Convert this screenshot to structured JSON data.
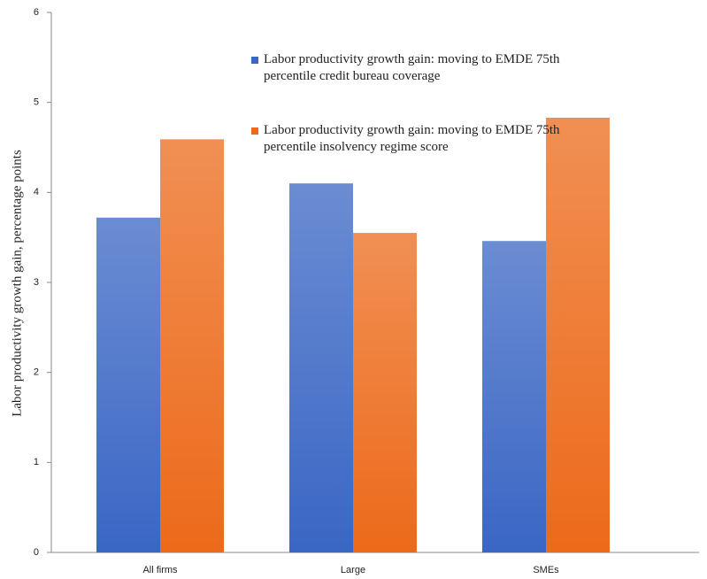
{
  "chart_data": {
    "type": "bar",
    "ylabel": "Labor productivity growth gain, percentage points",
    "categories": [
      "All firms",
      "Large",
      "SMEs"
    ],
    "series": [
      {
        "name": "Labor productivity growth gain: moving to EMDE 75th percentile credit bureau coverage",
        "color": "#3a66c4",
        "values": [
          3.72,
          4.1,
          3.46
        ]
      },
      {
        "name": "Labor productivity growth gain: moving to EMDE 75th percentile insolvency regime score",
        "color": "#ec6a1a",
        "values": [
          4.59,
          3.55,
          4.83
        ]
      }
    ],
    "ylim": [
      0,
      6
    ],
    "yticks": [
      0,
      1,
      2,
      3,
      4,
      5,
      6
    ],
    "grid": false
  }
}
